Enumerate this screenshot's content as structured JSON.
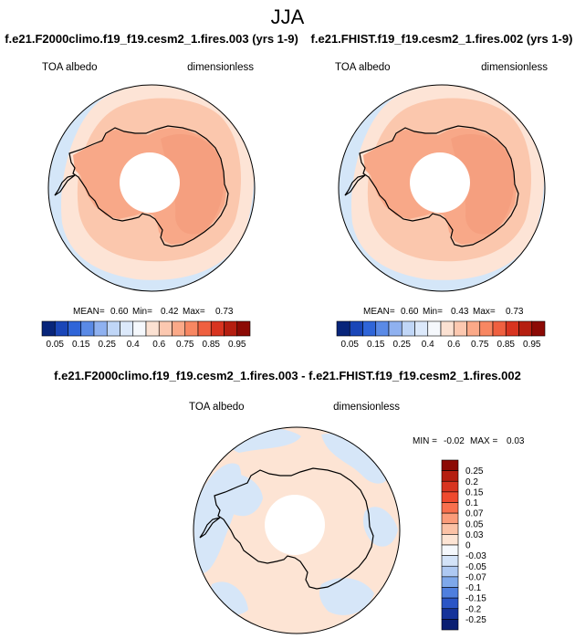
{
  "chart_data": {
    "type": "polar-map",
    "title": "JJA",
    "panels": [
      {
        "case_name": "f.e21.F2000climo.f19_f19.cesm2_1.fires.003 (yrs 1-9)",
        "variable": "TOA albedo",
        "units": "dimensionless",
        "stats": {
          "mean_label": "MEAN=",
          "mean": "0.60",
          "min_label": "Min=",
          "min": "0.42",
          "max_label": "Max=",
          "max": "0.73"
        },
        "fields": {
          "ocean_far": 0.25,
          "ocean_mid": 0.5,
          "sea_ice": 0.6,
          "ice_sheet": 0.65,
          "polar_night": null
        }
      },
      {
        "case_name": "f.e21.FHIST.f19_f19.cesm2_1.fires.002 (yrs 1-9)",
        "variable": "TOA albedo",
        "units": "dimensionless",
        "stats": {
          "mean_label": "MEAN=",
          "mean": "0.60",
          "min_label": "Min=",
          "min": "0.43",
          "max_label": "Max=",
          "max": "0.73"
        },
        "fields": {
          "ocean_far": 0.25,
          "ocean_mid": 0.5,
          "sea_ice": 0.6,
          "ice_sheet": 0.65,
          "polar_night": null
        }
      }
    ],
    "abs_colorbar": {
      "ticks": [
        "0.05",
        "0.15",
        "0.25",
        "0.4",
        "0.6",
        "0.75",
        "0.85",
        "0.95"
      ],
      "colors": [
        "#08257a",
        "#1a46b8",
        "#2f65d8",
        "#5a8ae6",
        "#8fb1f0",
        "#c0d6f7",
        "#dce9fb",
        "#f5f8fc",
        "#fbe1d2",
        "#fcc8b0",
        "#fba988",
        "#f88762",
        "#ef6040",
        "#d83420",
        "#b51e10",
        "#8c0a05"
      ]
    },
    "diff_panel": {
      "title": "f.e21.F2000climo.f19_f19.cesm2_1.fires.003 - f.e21.FHIST.f19_f19.cesm2_1.fires.002",
      "variable": "TOA albedo",
      "units": "dimensionless",
      "stats": {
        "min_label": "MIN =",
        "min": "-0.02",
        "max_label": "MAX =",
        "max": "0.03"
      },
      "fields": {
        "background": 0.01,
        "negative_patches": -0.02,
        "polar_night": null
      },
      "colorbar": {
        "levels": [
          "0.25",
          "0.2",
          "0.15",
          "0.1",
          "0.07",
          "0.05",
          "0.03",
          "0",
          "-0.03",
          "-0.05",
          "-0.07",
          "-0.1",
          "-0.15",
          "-0.2",
          "-0.25"
        ],
        "colors": [
          "#8c0a05",
          "#b51e10",
          "#d83420",
          "#ef4a2e",
          "#f8704e",
          "#fb9c7a",
          "#fcc2a6",
          "#fde4d4",
          "#f5f8fc",
          "#d3e3f8",
          "#aec9f2",
          "#7ea8ea",
          "#4f7fde",
          "#2a55c6",
          "#15339a",
          "#0a1f72"
        ]
      }
    },
    "palette": {
      "ice_sheet": "#f8a888",
      "sea_ice": "#fbc7ad",
      "ocean_mid": "#fde4d6",
      "ocean_far": "#d4e6f8",
      "polar_night": "#ffffff",
      "diff_pos": "#fde4d4",
      "diff_neg": "#d6e6f8",
      "coast": "#000000"
    }
  }
}
